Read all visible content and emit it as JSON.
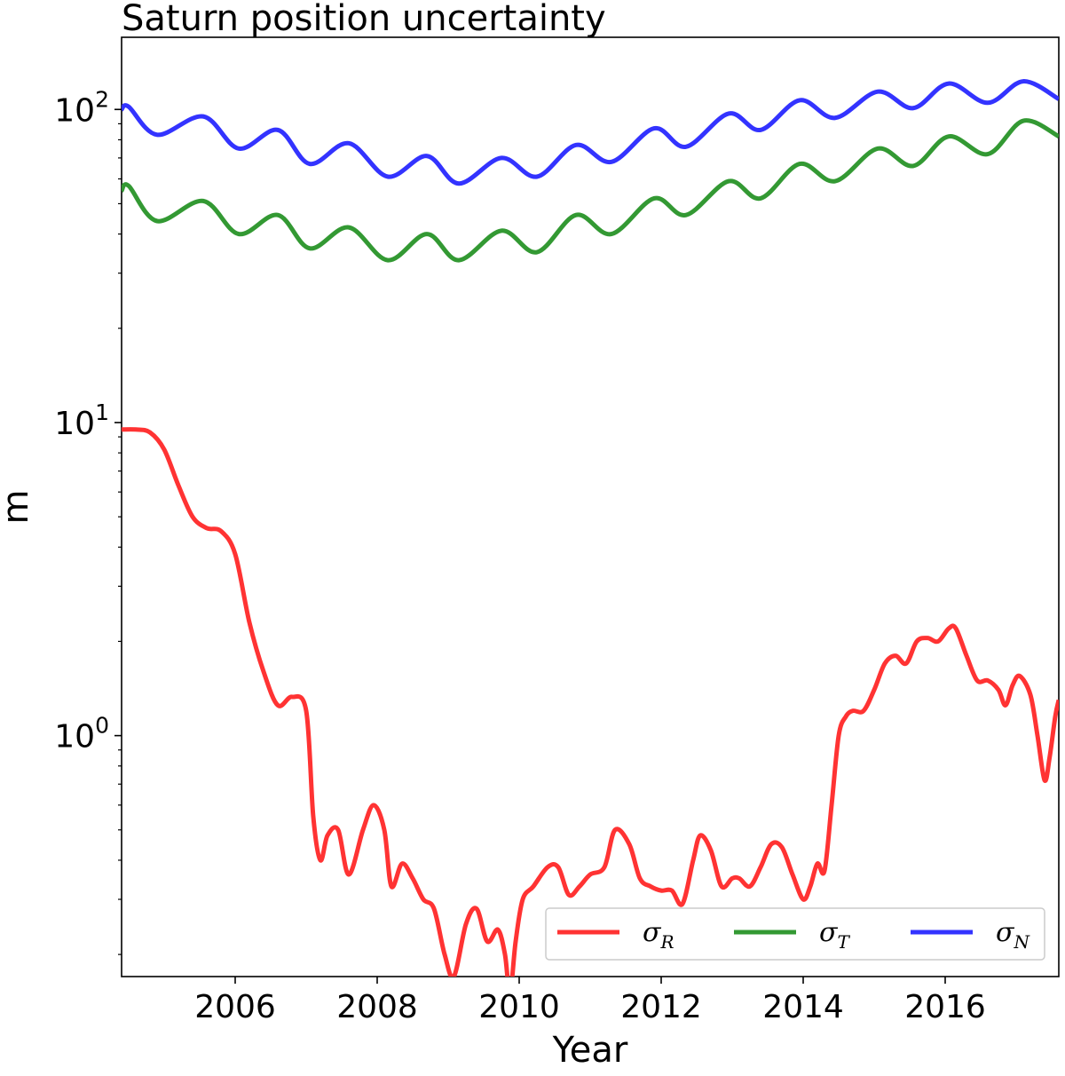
{
  "chart_data": {
    "type": "line",
    "title": "Saturn position uncertainty",
    "xlabel": "Year",
    "ylabel": "m",
    "yscale": "log",
    "xlim": [
      2004.4,
      2017.6
    ],
    "ylim": [
      0.17,
      170
    ],
    "x_ticks": [
      2006,
      2008,
      2010,
      2012,
      2014,
      2016
    ],
    "x_tick_labels": [
      "2006",
      "2008",
      "2010",
      "2012",
      "2014",
      "2016"
    ],
    "y_ticks": [
      1,
      10,
      100
    ],
    "y_tick_labels": [
      {
        "base": "10",
        "exp": "0"
      },
      {
        "base": "10",
        "exp": "1"
      },
      {
        "base": "10",
        "exp": "2"
      }
    ],
    "legend": {
      "location": "lower right",
      "columns": 3
    },
    "series": [
      {
        "name": "σ_R",
        "symbol": "σ",
        "subscript": "R",
        "color": "#ff3333",
        "x": [
          2004.4,
          2004.6,
          2004.8,
          2005.0,
          2005.2,
          2005.4,
          2005.6,
          2005.8,
          2006.0,
          2006.2,
          2006.4,
          2006.6,
          2006.8,
          2007.0,
          2007.1,
          2007.2,
          2007.3,
          2007.45,
          2007.6,
          2007.8,
          2007.95,
          2008.1,
          2008.2,
          2008.35,
          2008.5,
          2008.65,
          2008.8,
          2008.95,
          2009.08,
          2009.25,
          2009.4,
          2009.55,
          2009.7,
          2009.8,
          2009.87,
          2009.95,
          2010.05,
          2010.2,
          2010.4,
          2010.55,
          2010.7,
          2010.85,
          2011.0,
          2011.2,
          2011.35,
          2011.55,
          2011.7,
          2011.85,
          2012.0,
          2012.15,
          2012.3,
          2012.45,
          2012.55,
          2012.7,
          2012.85,
          2013.0,
          2013.1,
          2013.25,
          2013.4,
          2013.55,
          2013.7,
          2013.85,
          2014.0,
          2014.1,
          2014.2,
          2014.3,
          2014.4,
          2014.5,
          2014.6,
          2014.7,
          2014.85,
          2015.0,
          2015.15,
          2015.3,
          2015.45,
          2015.6,
          2015.75,
          2015.9,
          2016.05,
          2016.15,
          2016.3,
          2016.45,
          2016.6,
          2016.75,
          2016.85,
          2016.95,
          2017.05,
          2017.2,
          2017.3,
          2017.4,
          2017.47,
          2017.55,
          2017.6
        ],
        "values": [
          9.5,
          9.5,
          9.3,
          8.2,
          6.3,
          5.0,
          4.6,
          4.5,
          3.8,
          2.3,
          1.6,
          1.25,
          1.33,
          1.2,
          0.55,
          0.4,
          0.48,
          0.5,
          0.36,
          0.5,
          0.6,
          0.5,
          0.33,
          0.39,
          0.35,
          0.3,
          0.28,
          0.2,
          0.17,
          0.25,
          0.28,
          0.22,
          0.24,
          0.2,
          0.15,
          0.22,
          0.3,
          0.33,
          0.38,
          0.38,
          0.31,
          0.33,
          0.36,
          0.38,
          0.5,
          0.45,
          0.35,
          0.33,
          0.32,
          0.32,
          0.29,
          0.4,
          0.48,
          0.43,
          0.33,
          0.35,
          0.35,
          0.33,
          0.38,
          0.45,
          0.44,
          0.36,
          0.3,
          0.33,
          0.39,
          0.37,
          0.6,
          1.0,
          1.15,
          1.2,
          1.2,
          1.4,
          1.7,
          1.8,
          1.7,
          2.0,
          2.05,
          2.0,
          2.2,
          2.2,
          1.8,
          1.5,
          1.5,
          1.4,
          1.25,
          1.45,
          1.55,
          1.35,
          1.0,
          0.72,
          0.85,
          1.15,
          1.3
        ]
      },
      {
        "name": "σ_T",
        "symbol": "σ",
        "subscript": "T",
        "color": "#339933",
        "x": [
          2004.4,
          2004.5,
          2004.9,
          2005.55,
          2006.05,
          2006.6,
          2007.05,
          2007.6,
          2008.15,
          2008.7,
          2009.15,
          2009.75,
          2010.25,
          2010.8,
          2011.3,
          2011.9,
          2012.35,
          2012.95,
          2013.4,
          2013.95,
          2014.45,
          2015.05,
          2015.55,
          2016.05,
          2016.6,
          2017.1,
          2017.6
        ],
        "values": [
          55,
          57,
          44,
          51,
          40,
          46,
          36,
          42,
          33,
          40,
          33,
          41,
          35,
          46,
          40,
          52,
          46,
          59,
          52,
          67,
          59,
          75,
          66,
          82,
          72,
          92,
          82
        ]
      },
      {
        "name": "σ_N",
        "symbol": "σ",
        "subscript": "N",
        "color": "#3333ff",
        "x": [
          2004.4,
          2004.5,
          2004.9,
          2005.55,
          2006.05,
          2006.6,
          2007.05,
          2007.6,
          2008.15,
          2008.7,
          2009.15,
          2009.75,
          2010.25,
          2010.8,
          2011.3,
          2011.9,
          2012.35,
          2012.95,
          2013.4,
          2013.95,
          2014.45,
          2015.05,
          2015.55,
          2016.05,
          2016.6,
          2017.1,
          2017.6
        ],
        "values": [
          100,
          102,
          83,
          95,
          75,
          86,
          67,
          78,
          61,
          71,
          58,
          70,
          61,
          77,
          68,
          87,
          76,
          97,
          86,
          107,
          94,
          114,
          101,
          121,
          105,
          123,
          108
        ]
      }
    ]
  }
}
